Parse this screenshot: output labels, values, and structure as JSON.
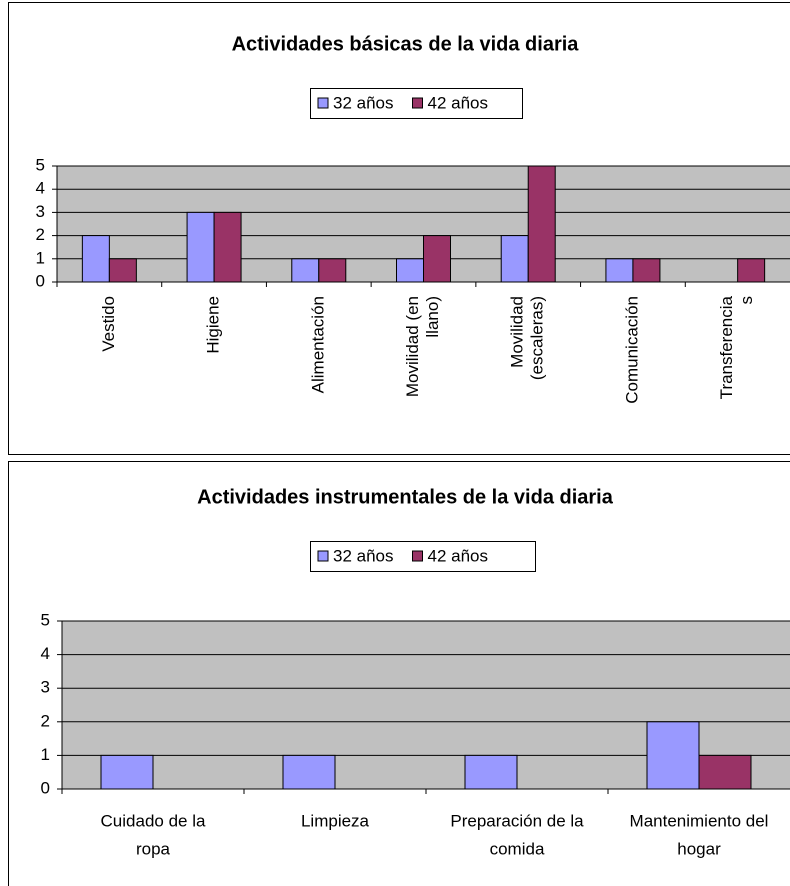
{
  "chart_data": [
    {
      "type": "bar",
      "title": "Actividades básicas de la vida diaria",
      "categories": [
        [
          "Vestido"
        ],
        [
          "Higiene"
        ],
        [
          "Alimentación"
        ],
        [
          "Movilidad (en",
          "llano)"
        ],
        [
          "Movilidad",
          "(escaleras)"
        ],
        [
          "Comunicación"
        ],
        [
          "Transferencia",
          "s"
        ]
      ],
      "series": [
        {
          "name": "32 años",
          "color": "#9999ff",
          "values": [
            2,
            3,
            1,
            1,
            2,
            1,
            0
          ]
        },
        {
          "name": "42 años",
          "color": "#993366",
          "values": [
            1,
            3,
            1,
            2,
            5,
            1,
            1
          ]
        }
      ],
      "ylim": [
        0,
        5
      ],
      "yticks": [
        0,
        1,
        2,
        3,
        4,
        5
      ],
      "grid": true,
      "legend": "top"
    },
    {
      "type": "bar",
      "title": "Actividades instrumentales de la vida diaria",
      "categories": [
        [
          "Cuidado de la",
          "ropa"
        ],
        [
          "Limpieza"
        ],
        [
          "Preparación de la",
          "comida"
        ],
        [
          "Mantenimiento del",
          "hogar"
        ]
      ],
      "series": [
        {
          "name": "32 años",
          "color": "#9999ff",
          "values": [
            1,
            1,
            1,
            2
          ]
        },
        {
          "name": "42 años",
          "color": "#993366",
          "values": [
            0,
            0,
            0,
            1
          ]
        }
      ],
      "ylim": [
        0,
        5
      ],
      "yticks": [
        0,
        1,
        2,
        3,
        4,
        5
      ],
      "grid": true,
      "legend": "top"
    }
  ]
}
